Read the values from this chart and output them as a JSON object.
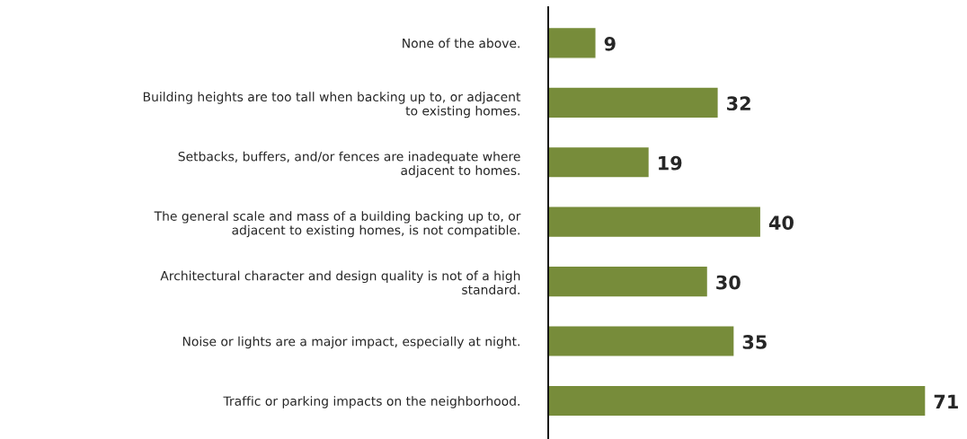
{
  "chart_data": {
    "type": "bar",
    "orientation": "horizontal",
    "categories": [
      "None of the above.",
      "Building heights are too tall when backing up to, or adjacent\nto existing homes.",
      "Setbacks, buffers, and/or fences are inadequate where\nadjacent to homes.",
      "The general scale and mass of a building backing up to, or\nadjacent to existing homes, is not compatible.",
      "Architectural character and design quality is not of a high\nstandard.",
      "Noise or lights are a major impact, especially at night.",
      "Traffic or parking impacts on the neighborhood."
    ],
    "values": [
      9,
      32,
      19,
      40,
      30,
      35,
      71
    ],
    "color": "#778c3a",
    "data_labels": true,
    "grid": false,
    "legend": false
  }
}
